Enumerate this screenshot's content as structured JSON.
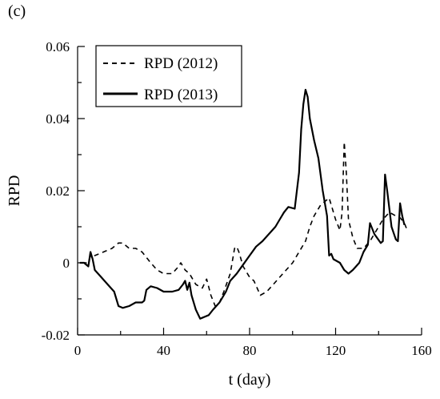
{
  "panel_label": "(c)",
  "chart_data": {
    "type": "line",
    "title": "",
    "xlabel": "t (day)",
    "ylabel": "RPD",
    "xlim": [
      0,
      160
    ],
    "ylim": [
      -0.02,
      0.06
    ],
    "xticks": [
      0,
      40,
      80,
      120,
      160
    ],
    "xtick_labels": [
      "0",
      "40",
      "80",
      "120",
      "160"
    ],
    "yticks": [
      -0.02,
      0,
      0.02,
      0.04,
      0.06
    ],
    "ytick_labels": [
      "-0.02",
      "0",
      "0.02",
      "0.04",
      "0.06"
    ],
    "grid": false,
    "legend_position": "top-left",
    "series": [
      {
        "name": "RPD (2012)",
        "style": "dashed",
        "color": "#000000",
        "points": [
          [
            2,
            0.0
          ],
          [
            5,
            0.0
          ],
          [
            6,
            0.002
          ],
          [
            8,
            0.002
          ],
          [
            12,
            0.003
          ],
          [
            16,
            0.004
          ],
          [
            19,
            0.0055
          ],
          [
            21,
            0.0055
          ],
          [
            24,
            0.004
          ],
          [
            27,
            0.004
          ],
          [
            30,
            0.003
          ],
          [
            34,
            0.0
          ],
          [
            37,
            -0.002
          ],
          [
            40,
            -0.003
          ],
          [
            44,
            -0.003
          ],
          [
            47,
            -0.001
          ],
          [
            48,
            0.0
          ],
          [
            50,
            -0.002
          ],
          [
            52,
            -0.003
          ],
          [
            55,
            -0.006
          ],
          [
            58,
            -0.007
          ],
          [
            60,
            -0.0045
          ],
          [
            62,
            -0.009
          ],
          [
            64,
            -0.012
          ],
          [
            66,
            -0.011
          ],
          [
            68,
            -0.008
          ],
          [
            71,
            -0.003
          ],
          [
            73,
            0.004
          ],
          [
            74,
            0.0045
          ],
          [
            75,
            0.003
          ],
          [
            77,
            -0.001
          ],
          [
            80,
            -0.004
          ],
          [
            82,
            -0.005
          ],
          [
            85,
            -0.009
          ],
          [
            88,
            -0.008
          ],
          [
            91,
            -0.006
          ],
          [
            94,
            -0.004
          ],
          [
            97,
            -0.002
          ],
          [
            100,
            0.0
          ],
          [
            103,
            0.003
          ],
          [
            106,
            0.006
          ],
          [
            108,
            0.01
          ],
          [
            110,
            0.013
          ],
          [
            113,
            0.016
          ],
          [
            116,
            0.0175
          ],
          [
            117,
            0.018
          ],
          [
            118,
            0.016
          ],
          [
            120,
            0.012
          ],
          [
            122,
            0.009
          ],
          [
            123,
            0.014
          ],
          [
            124,
            0.0335
          ],
          [
            125,
            0.025
          ],
          [
            126,
            0.012
          ],
          [
            128,
            0.007
          ],
          [
            130,
            0.004
          ],
          [
            133,
            0.004
          ],
          [
            136,
            0.006
          ],
          [
            139,
            0.009
          ],
          [
            142,
            0.012
          ],
          [
            145,
            0.014
          ],
          [
            148,
            0.013
          ],
          [
            150,
            0.0125
          ],
          [
            152,
            0.011
          ],
          [
            153,
            0.0095
          ]
        ]
      },
      {
        "name": "RPD (2013)",
        "style": "solid",
        "color": "#000000",
        "points": [
          [
            1,
            0.0
          ],
          [
            3,
            0.0
          ],
          [
            5,
            -0.001
          ],
          [
            6,
            0.003
          ],
          [
            7,
            0.001
          ],
          [
            8,
            -0.002
          ],
          [
            11,
            -0.004
          ],
          [
            14,
            -0.006
          ],
          [
            17,
            -0.008
          ],
          [
            19,
            -0.012
          ],
          [
            21,
            -0.0125
          ],
          [
            24,
            -0.012
          ],
          [
            27,
            -0.011
          ],
          [
            30,
            -0.011
          ],
          [
            31,
            -0.0105
          ],
          [
            32,
            -0.0075
          ],
          [
            34,
            -0.0065
          ],
          [
            37,
            -0.007
          ],
          [
            40,
            -0.008
          ],
          [
            44,
            -0.008
          ],
          [
            47,
            -0.0075
          ],
          [
            49,
            -0.006
          ],
          [
            50,
            -0.005
          ],
          [
            51,
            -0.0075
          ],
          [
            52,
            -0.0055
          ],
          [
            53,
            -0.009
          ],
          [
            55,
            -0.013
          ],
          [
            57,
            -0.0155
          ],
          [
            59,
            -0.015
          ],
          [
            61,
            -0.0145
          ],
          [
            63,
            -0.013
          ],
          [
            66,
            -0.011
          ],
          [
            69,
            -0.008
          ],
          [
            71,
            -0.005
          ],
          [
            74,
            -0.003
          ],
          [
            77,
            -0.0005
          ],
          [
            80,
            0.002
          ],
          [
            83,
            0.0045
          ],
          [
            86,
            0.006
          ],
          [
            89,
            0.008
          ],
          [
            92,
            0.01
          ],
          [
            94,
            0.012
          ],
          [
            96,
            0.014
          ],
          [
            98,
            0.0155
          ],
          [
            101,
            0.015
          ],
          [
            103,
            0.025
          ],
          [
            104,
            0.037
          ],
          [
            105,
            0.044
          ],
          [
            106,
            0.048
          ],
          [
            107,
            0.046
          ],
          [
            108,
            0.04
          ],
          [
            110,
            0.034
          ],
          [
            112,
            0.029
          ],
          [
            114,
            0.02
          ],
          [
            116,
            0.013
          ],
          [
            117,
            0.002
          ],
          [
            118,
            0.0025
          ],
          [
            119,
            0.001
          ],
          [
            122,
            0.0
          ],
          [
            124,
            -0.002
          ],
          [
            126,
            -0.003
          ],
          [
            128,
            -0.002
          ],
          [
            131,
            0.0
          ],
          [
            133,
            0.003
          ],
          [
            135,
            0.005
          ],
          [
            136,
            0.011
          ],
          [
            138,
            0.008
          ],
          [
            141,
            0.0055
          ],
          [
            142,
            0.006
          ],
          [
            143,
            0.0245
          ],
          [
            144,
            0.02
          ],
          [
            146,
            0.01
          ],
          [
            148,
            0.0065
          ],
          [
            149,
            0.006
          ],
          [
            150,
            0.0165
          ],
          [
            151,
            0.013
          ],
          [
            152,
            0.0105
          ]
        ]
      }
    ]
  }
}
